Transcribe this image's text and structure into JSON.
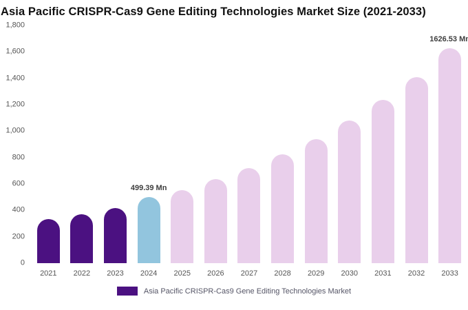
{
  "title": "Asia Pacific CRISPR-Cas9 Gene Editing Technologies Market Size (2021-2033)",
  "legend": {
    "swatch_color": "#4b1181",
    "label": "Asia Pacific CRISPR-Cas9 Gene Editing Technologies Market"
  },
  "chart_data": {
    "type": "bar",
    "title": "Asia Pacific CRISPR-Cas9 Gene Editing Technologies Market Size (2021-2033)",
    "xlabel": "",
    "ylabel": "",
    "categories": [
      "2021",
      "2022",
      "2023",
      "2024",
      "2025",
      "2026",
      "2027",
      "2028",
      "2029",
      "2030",
      "2031",
      "2032",
      "2033"
    ],
    "values": [
      335,
      370,
      420,
      499.39,
      555,
      635,
      720,
      825,
      940,
      1080,
      1235,
      1410,
      1626.53
    ],
    "unit": "Mn",
    "bar_colors": [
      "#4b1181",
      "#4b1181",
      "#4b1181",
      "#92c5de",
      "#e9cfeb",
      "#e9cfeb",
      "#e9cfeb",
      "#e9cfeb",
      "#e9cfeb",
      "#e9cfeb",
      "#e9cfeb",
      "#e9cfeb",
      "#e9cfeb"
    ],
    "data_labels": {
      "2024": "499.39 Mn",
      "2033": "1626.53 Mn"
    },
    "ylim": [
      0,
      1800
    ],
    "yticks": [
      0,
      200,
      400,
      600,
      800,
      1000,
      1200,
      1400,
      1600,
      1800
    ],
    "ytick_labels": [
      "0",
      "200",
      "400",
      "600",
      "800",
      "1,000",
      "1,200",
      "1,400",
      "1,600",
      "1,800"
    ],
    "grid": "off",
    "legend_position": "bottom",
    "colors": {
      "dark_purple": "#4b1181",
      "light_blue": "#92c5de",
      "light_pink": "#e9cfeb"
    }
  }
}
